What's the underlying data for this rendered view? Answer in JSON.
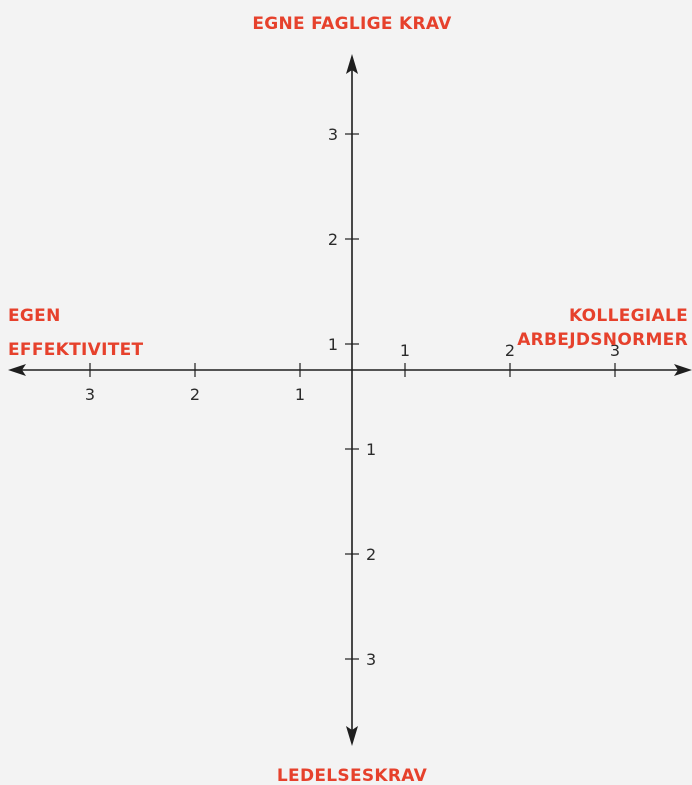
{
  "labels": {
    "top": "EGNE FAGLIGE KRAV",
    "bottom": "LEDELSESKRAV",
    "left": [
      "EGEN",
      "EFFEKTIVITET"
    ],
    "right": [
      "KOLLEGIALE",
      "ARBEJDSNORMER"
    ]
  },
  "ticks": {
    "x_positive": [
      "1",
      "2",
      "3"
    ],
    "x_negative": [
      "1",
      "2",
      "3"
    ],
    "y_positive": [
      "1",
      "2",
      "3"
    ],
    "y_negative": [
      "1",
      "2",
      "3"
    ]
  },
  "colors": {
    "accent": "#e6412c",
    "axis": "#1e1e1e",
    "background": "#f3f3f3"
  }
}
